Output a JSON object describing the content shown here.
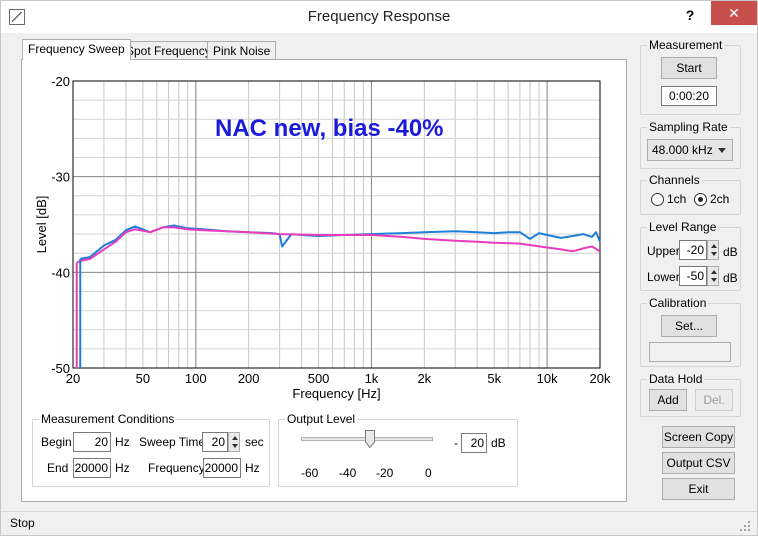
{
  "window": {
    "title": "Frequency Response",
    "help_label": "?",
    "close_label": "✕"
  },
  "tabs": [
    {
      "label": "Frequency Sweep",
      "active": true
    },
    {
      "label": "Spot Frequency",
      "active": false
    },
    {
      "label": "Pink Noise",
      "active": false
    }
  ],
  "chart_data": {
    "type": "line",
    "annotation": "NAC new, bias -40%",
    "annotation_color": "#1a1adb",
    "xlabel": "Frequency [Hz]",
    "ylabel": "Level [dB]",
    "xscale": "log",
    "xlim": [
      20,
      20000
    ],
    "ylim": [
      -50,
      -20
    ],
    "x_ticks": [
      20,
      50,
      100,
      200,
      500,
      1000,
      2000,
      5000,
      10000,
      20000
    ],
    "x_tick_labels": [
      "20",
      "50",
      "100",
      "200",
      "500",
      "1k",
      "2k",
      "5k",
      "10k",
      "20k"
    ],
    "y_ticks": [
      -20,
      -30,
      -40,
      -50
    ],
    "y_tick_labels": [
      "-20",
      "-30",
      "-40",
      "-50"
    ],
    "grid": true,
    "series": [
      {
        "color": "#1f7fd6",
        "x": [
          22,
          25,
          30,
          35,
          40,
          45,
          55,
          65,
          75,
          90,
          110,
          150,
          200,
          270,
          300,
          310,
          350,
          400,
          500,
          700,
          1000,
          1500,
          2000,
          3000,
          4000,
          5000,
          6000,
          7000,
          8000,
          9000,
          10000,
          12000,
          14000,
          16000,
          18000,
          19000,
          20000
        ],
        "y": [
          -38.6,
          -38.4,
          -37.2,
          -36.6,
          -35.6,
          -35.2,
          -35.8,
          -35.3,
          -35.1,
          -35.4,
          -35.5,
          -35.7,
          -35.8,
          -35.9,
          -36.0,
          -37.3,
          -36.0,
          -36.1,
          -36.2,
          -36.1,
          -36.0,
          -35.9,
          -35.8,
          -35.7,
          -35.8,
          -35.9,
          -35.8,
          -35.8,
          -36.5,
          -35.9,
          -36.1,
          -36.4,
          -36.2,
          -36.0,
          -36.3,
          -35.8,
          -36.8
        ]
      },
      {
        "color": "#e83cbd",
        "x": [
          21,
          22,
          25,
          30,
          35,
          40,
          45,
          55,
          65,
          75,
          90,
          110,
          150,
          200,
          300,
          500,
          1000,
          1500,
          2000,
          3000,
          4000,
          5000,
          7000,
          10000,
          12000,
          14000,
          16000,
          18000,
          20000
        ],
        "y": [
          -39.0,
          -38.8,
          -38.6,
          -37.6,
          -36.8,
          -35.8,
          -35.5,
          -35.8,
          -35.3,
          -35.3,
          -35.5,
          -35.6,
          -35.7,
          -35.8,
          -36.0,
          -36.1,
          -36.1,
          -36.3,
          -36.5,
          -36.7,
          -36.8,
          -36.9,
          -37.0,
          -37.4,
          -37.6,
          -37.8,
          -37.5,
          -37.3,
          -37.8
        ]
      }
    ]
  },
  "measurement": {
    "title": "Measurement",
    "start_label": "Start",
    "time_value": "0:00:20"
  },
  "sampling": {
    "title": "Sampling Rate",
    "selected": "48.000 kHz"
  },
  "channels": {
    "title": "Channels",
    "options": [
      {
        "label": "1ch",
        "checked": false
      },
      {
        "label": "2ch",
        "checked": true
      }
    ]
  },
  "level_range": {
    "title": "Level Range",
    "upper_label": "Upper",
    "upper_value": "-20",
    "lower_label": "Lower",
    "lower_value": "-50",
    "unit": "dB"
  },
  "calibration": {
    "title": "Calibration",
    "set_label": "Set...",
    "value": ""
  },
  "data_hold": {
    "title": "Data Hold",
    "add_label": "Add",
    "del_label": "Del."
  },
  "actions": {
    "screen_copy": "Screen Copy",
    "output_csv": "Output CSV",
    "exit": "Exit"
  },
  "conditions": {
    "title": "Measurement Conditions",
    "begin_label": "Begin",
    "begin_value": "20",
    "begin_unit": "Hz",
    "end_label": "End",
    "end_value": "20000",
    "end_unit": "Hz",
    "sweep_time_label": "Sweep Time",
    "sweep_time_value": "20",
    "sweep_time_unit": "sec",
    "frequency_label": "Frequency",
    "frequency_value": "20000",
    "frequency_unit": "Hz"
  },
  "output_level": {
    "title": "Output Level",
    "slider_value_db": -20,
    "scale_labels": [
      "-60",
      "-40",
      "-20",
      "0"
    ],
    "minus_sign": "-",
    "value": "20",
    "unit": "dB"
  },
  "status": {
    "text": "Stop"
  }
}
